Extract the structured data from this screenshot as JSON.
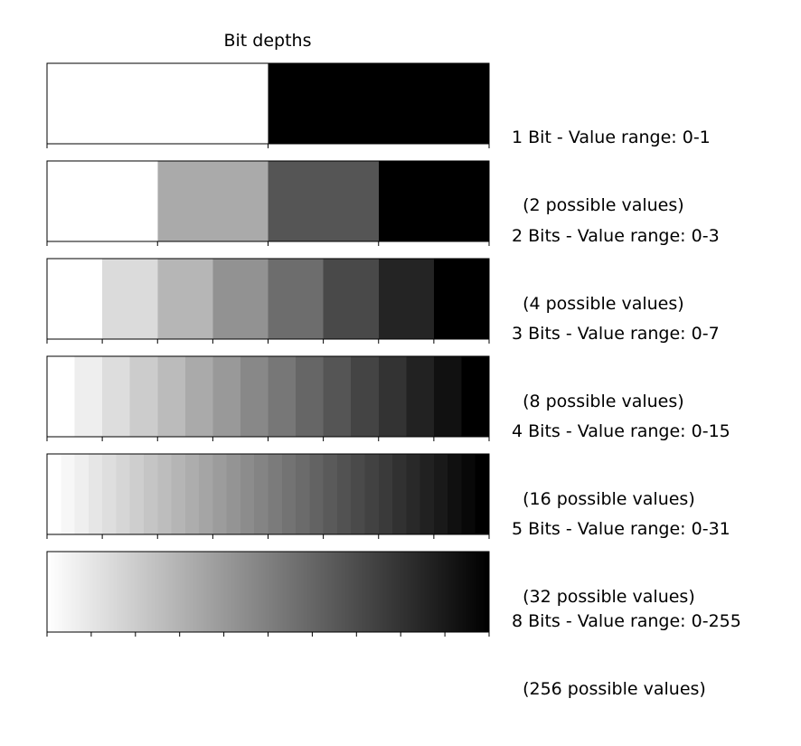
{
  "title": "Bit depths",
  "rows": [
    {
      "bits": 1,
      "levels": 2,
      "label_line1": "1 Bit - Value range: 0-1",
      "label_line2": "  (2 possible values)"
    },
    {
      "bits": 2,
      "levels": 4,
      "label_line1": "2 Bits - Value range: 0-3",
      "label_line2": "  (4 possible values)"
    },
    {
      "bits": 3,
      "levels": 8,
      "label_line1": "3 Bits - Value range: 0-7",
      "label_line2": "  (8 possible values)"
    },
    {
      "bits": 4,
      "levels": 16,
      "label_line1": "4 Bits - Value range: 0-15",
      "label_line2": "  (16 possible values)"
    },
    {
      "bits": 5,
      "levels": 32,
      "label_line1": "5 Bits - Value range: 0-31",
      "label_line2": "  (32 possible values)"
    },
    {
      "bits": 8,
      "levels": 256,
      "label_line1": "8 Bits - Value range: 0-255",
      "label_line2": "  (256 possible values)"
    }
  ],
  "colors": {
    "white": "#ffffff",
    "black": "#000000",
    "frame": "#000000"
  }
}
